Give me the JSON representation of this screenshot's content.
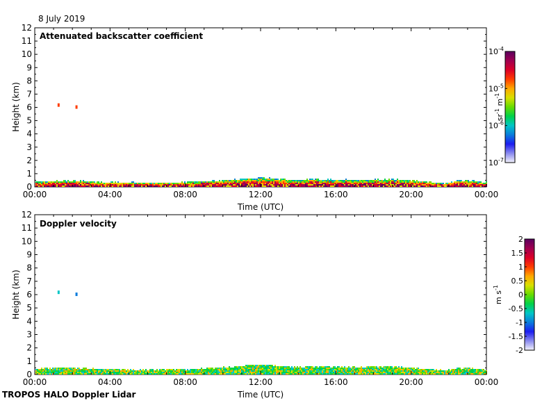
{
  "date_label": "8 July 2019",
  "footer_label": "TROPOS HALO Doppler Lidar",
  "colors": {
    "cb_backscatter": [
      "#f2f2fa",
      "#8a8aee",
      "#1c1cf0",
      "#0a7cdc",
      "#00c6c6",
      "#00d24a",
      "#66dc00",
      "#d8e000",
      "#ffa800",
      "#ff3c00",
      "#dc0028",
      "#a00050",
      "#5a0060"
    ],
    "cb_velocity": [
      "#f2f2fa",
      "#8a8aee",
      "#1c1cf0",
      "#0a7cdc",
      "#00c6c6",
      "#00d24a",
      "#66dc00",
      "#d8e000",
      "#ffa800",
      "#ff3c00",
      "#dc0028",
      "#a00050",
      "#5a0060"
    ]
  },
  "chart_data": [
    {
      "type": "heatmap",
      "title": "Attenuated backscatter coefficient",
      "xlabel": "Time (UTC)",
      "ylabel": "Height (km)",
      "x_ticks": [
        "00:00",
        "04:00",
        "08:00",
        "12:00",
        "16:00",
        "20:00",
        "00:00"
      ],
      "x_tick_hours": [
        0,
        4,
        8,
        12,
        16,
        20,
        24
      ],
      "xlim_hours": [
        0,
        24
      ],
      "ylim": [
        0,
        12
      ],
      "y_ticks": [
        "0",
        "1",
        "2",
        "3",
        "4",
        "5",
        "6",
        "7",
        "8",
        "9",
        "10",
        "11",
        "12"
      ],
      "grid": false,
      "colorbar": {
        "label_base": "sr",
        "label_exp1": "-1",
        "label_mid": " m",
        "label_exp2": "-1",
        "scale": "log",
        "range": [
          1e-07,
          0.0001
        ],
        "ticks": [
          {
            "base": "10",
            "exp": "-4",
            "value": 0.0001
          },
          {
            "base": "10",
            "exp": "-5",
            "value": 1e-05
          },
          {
            "base": "10",
            "exp": "-6",
            "value": 1e-06
          },
          {
            "base": "10",
            "exp": "-7",
            "value": 1e-07
          }
        ]
      },
      "boundary_layer_top_km": [
        [
          0,
          0.35
        ],
        [
          1,
          0.38
        ],
        [
          2,
          0.42
        ],
        [
          3,
          0.35
        ],
        [
          4,
          0.3
        ],
        [
          5,
          0.28
        ],
        [
          6,
          0.27
        ],
        [
          7,
          0.28
        ],
        [
          8,
          0.3
        ],
        [
          9,
          0.38
        ],
        [
          10,
          0.45
        ],
        [
          11,
          0.55
        ],
        [
          12,
          0.65
        ],
        [
          13,
          0.55
        ],
        [
          14,
          0.48
        ],
        [
          15,
          0.52
        ],
        [
          16,
          0.5
        ],
        [
          17,
          0.48
        ],
        [
          18,
          0.5
        ],
        [
          19,
          0.52
        ],
        [
          20,
          0.45
        ],
        [
          21,
          0.3
        ],
        [
          21.8,
          0.2
        ],
        [
          22.5,
          0.45
        ],
        [
          23.3,
          0.42
        ],
        [
          24,
          0.3
        ]
      ],
      "clouds": [
        {
          "time_h": 1.25,
          "height_km": 6.2,
          "level": "10^-5"
        },
        {
          "time_h": 2.2,
          "height_km": 6.05,
          "level": "10^-5"
        }
      ]
    },
    {
      "type": "heatmap",
      "title": "Doppler velocity",
      "xlabel": "Time (UTC)",
      "ylabel": "Height (km)",
      "x_ticks": [
        "00:00",
        "04:00",
        "08:00",
        "12:00",
        "16:00",
        "20:00",
        "00:00"
      ],
      "x_tick_hours": [
        0,
        4,
        8,
        12,
        16,
        20,
        24
      ],
      "xlim_hours": [
        0,
        24
      ],
      "ylim": [
        0,
        12
      ],
      "y_ticks": [
        "0",
        "1",
        "2",
        "3",
        "4",
        "5",
        "6",
        "7",
        "8",
        "9",
        "10",
        "11",
        "12"
      ],
      "grid": false,
      "colorbar": {
        "label_base": "m s",
        "label_exp1": "-1",
        "scale": "linear",
        "range": [
          -2,
          2
        ],
        "ticks": [
          {
            "label": "2",
            "value": 2
          },
          {
            "label": "1.5",
            "value": 1.5
          },
          {
            "label": "1",
            "value": 1
          },
          {
            "label": "0.5",
            "value": 0.5
          },
          {
            "label": "0",
            "value": 0
          },
          {
            "label": "-0.5",
            "value": -0.5
          },
          {
            "label": "-1",
            "value": -1
          },
          {
            "label": "-1.5",
            "value": -1.5
          },
          {
            "label": "-2",
            "value": -2
          }
        ]
      },
      "boundary_layer_top_km": [
        [
          0,
          0.4
        ],
        [
          1,
          0.45
        ],
        [
          2,
          0.45
        ],
        [
          3,
          0.4
        ],
        [
          4,
          0.35
        ],
        [
          5,
          0.32
        ],
        [
          6,
          0.3
        ],
        [
          7,
          0.3
        ],
        [
          8,
          0.32
        ],
        [
          9,
          0.4
        ],
        [
          10,
          0.5
        ],
        [
          11,
          0.6
        ],
        [
          12,
          0.7
        ],
        [
          13,
          0.58
        ],
        [
          14,
          0.5
        ],
        [
          15,
          0.55
        ],
        [
          16,
          0.55
        ],
        [
          17,
          0.5
        ],
        [
          18,
          0.55
        ],
        [
          19,
          0.55
        ],
        [
          20,
          0.45
        ],
        [
          21,
          0.35
        ],
        [
          21.8,
          0.25
        ],
        [
          22.5,
          0.45
        ],
        [
          23.3,
          0.42
        ],
        [
          24,
          0.3
        ]
      ],
      "clouds": [
        {
          "time_h": 1.25,
          "height_km": 6.2,
          "velocity_ms": -0.8
        },
        {
          "time_h": 2.2,
          "height_km": 6.05,
          "velocity_ms": -1.0
        }
      ]
    }
  ]
}
